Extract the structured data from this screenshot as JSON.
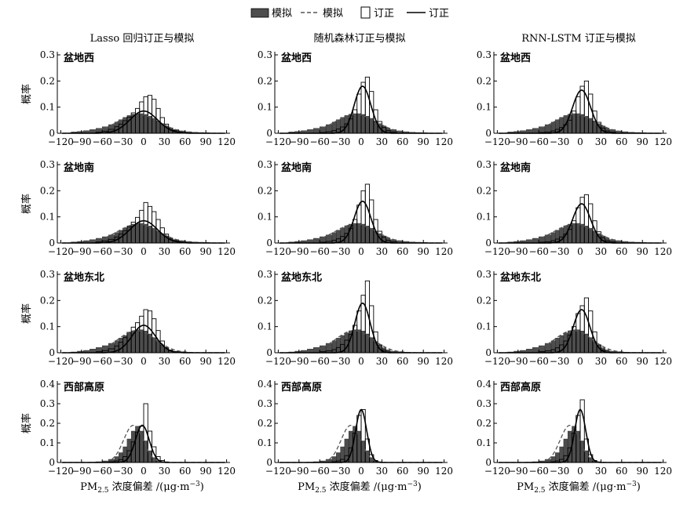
{
  "legend": {
    "sim_bar": "模拟",
    "sim_line": "模拟",
    "cor_bar": "订正",
    "cor_line": "订正"
  },
  "column_titles": [
    "Lasso 回归订正与模拟",
    "随机森林订正与模拟",
    "RNN-LSTM 订正与模拟"
  ],
  "row_titles": [
    "盆地西",
    "盆地南",
    "盆地东北",
    "西部高原"
  ],
  "ylabel": "概率",
  "xlabel": {
    "prefix": "PM",
    "sub": "2.5",
    "mid": " 浓度偏差 /(μg·m",
    "sup": "−3",
    "suffix": ")"
  },
  "colors": {
    "sim_fill": "#4d4d4d",
    "cor_fill": "#ffffff",
    "stroke": "#000000",
    "sim_line": "#555555"
  },
  "chart_data": {
    "type": "histogram-grid",
    "x_ticks": [
      -120,
      -90,
      -60,
      -30,
      0,
      30,
      60,
      90,
      120
    ],
    "xlim": [
      -125,
      125
    ],
    "bin_edges": [
      -105,
      -96,
      -87,
      -78,
      -69,
      -60,
      -51,
      -42,
      -36,
      -30,
      -24,
      -18,
      -12,
      -6,
      0,
      6,
      12,
      18,
      24,
      30,
      36,
      42,
      51,
      60,
      69,
      78,
      87,
      96,
      105
    ],
    "simulated": [
      [
        0.005,
        0.007,
        0.01,
        0.014,
        0.019,
        0.025,
        0.033,
        0.043,
        0.052,
        0.061,
        0.068,
        0.073,
        0.075,
        0.075,
        0.072,
        0.065,
        0.057,
        0.047,
        0.037,
        0.028,
        0.02,
        0.014,
        0.009,
        0.006,
        0.004,
        0.003,
        0.002,
        0.001
      ],
      [
        0.004,
        0.006,
        0.009,
        0.013,
        0.018,
        0.024,
        0.031,
        0.04,
        0.049,
        0.058,
        0.066,
        0.072,
        0.075,
        0.075,
        0.072,
        0.065,
        0.056,
        0.046,
        0.036,
        0.027,
        0.019,
        0.013,
        0.009,
        0.006,
        0.004,
        0.003,
        0.002,
        0.001
      ],
      [
        0.003,
        0.006,
        0.009,
        0.014,
        0.02,
        0.027,
        0.036,
        0.046,
        0.056,
        0.066,
        0.076,
        0.084,
        0.088,
        0.088,
        0.083,
        0.072,
        0.058,
        0.043,
        0.03,
        0.019,
        0.011,
        0.006,
        0.004,
        0.002,
        0.001,
        0.001,
        0.0,
        0.0
      ],
      [
        0.0,
        0.0,
        0.001,
        0.002,
        0.004,
        0.008,
        0.016,
        0.03,
        0.05,
        0.08,
        0.12,
        0.16,
        0.185,
        0.16,
        0.11,
        0.06,
        0.025,
        0.01,
        0.004,
        0.002,
        0.001,
        0.0,
        0.0,
        0.0,
        0.0,
        0.0,
        0.0,
        0.0
      ]
    ],
    "simulated_curve_sd": [
      30,
      30,
      27,
      14
    ],
    "simulated_curve_mean": [
      -8,
      -8,
      -10,
      -15
    ],
    "simulated_curve_scale": [
      0.072,
      0.072,
      0.085,
      0.19
    ],
    "corrected": [
      [
        [
          0.0,
          0.0,
          0.001,
          0.002,
          0.004,
          0.008,
          0.015,
          0.025,
          0.035,
          0.048,
          0.062,
          0.078,
          0.095,
          0.12,
          0.14,
          0.145,
          0.13,
          0.095,
          0.06,
          0.035,
          0.02,
          0.01,
          0.005,
          0.002,
          0.001,
          0.0,
          0.0,
          0.0
        ],
        [
          0.0,
          0.0,
          0.0,
          0.001,
          0.002,
          0.003,
          0.006,
          0.01,
          0.016,
          0.024,
          0.036,
          0.055,
          0.09,
          0.15,
          0.195,
          0.215,
          0.16,
          0.09,
          0.045,
          0.022,
          0.01,
          0.005,
          0.002,
          0.001,
          0.0,
          0.0,
          0.0,
          0.0
        ],
        [
          0.0,
          0.0,
          0.0,
          0.001,
          0.002,
          0.003,
          0.005,
          0.009,
          0.015,
          0.022,
          0.033,
          0.05,
          0.085,
          0.14,
          0.18,
          0.2,
          0.15,
          0.085,
          0.042,
          0.02,
          0.009,
          0.004,
          0.002,
          0.001,
          0.0,
          0.0,
          0.0,
          0.0
        ]
      ],
      [
        [
          0.0,
          0.0,
          0.001,
          0.002,
          0.004,
          0.008,
          0.014,
          0.023,
          0.034,
          0.047,
          0.062,
          0.08,
          0.098,
          0.125,
          0.155,
          0.14,
          0.12,
          0.09,
          0.058,
          0.034,
          0.018,
          0.009,
          0.004,
          0.002,
          0.001,
          0.0,
          0.0,
          0.0
        ],
        [
          0.0,
          0.0,
          0.0,
          0.001,
          0.002,
          0.003,
          0.006,
          0.01,
          0.016,
          0.025,
          0.037,
          0.056,
          0.09,
          0.145,
          0.2,
          0.225,
          0.165,
          0.09,
          0.045,
          0.022,
          0.01,
          0.005,
          0.002,
          0.001,
          0.0,
          0.0,
          0.0,
          0.0
        ],
        [
          0.0,
          0.0,
          0.0,
          0.001,
          0.002,
          0.003,
          0.005,
          0.009,
          0.015,
          0.023,
          0.034,
          0.052,
          0.085,
          0.135,
          0.175,
          0.185,
          0.15,
          0.085,
          0.043,
          0.02,
          0.009,
          0.004,
          0.002,
          0.001,
          0.0,
          0.0,
          0.0,
          0.0
        ]
      ],
      [
        [
          0.0,
          0.0,
          0.001,
          0.002,
          0.004,
          0.008,
          0.015,
          0.026,
          0.04,
          0.058,
          0.078,
          0.098,
          0.115,
          0.14,
          0.165,
          0.16,
          0.13,
          0.085,
          0.045,
          0.02,
          0.008,
          0.003,
          0.001,
          0.0,
          0.0,
          0.0,
          0.0,
          0.0
        ],
        [
          0.0,
          0.0,
          0.0,
          0.001,
          0.002,
          0.004,
          0.007,
          0.012,
          0.02,
          0.032,
          0.048,
          0.07,
          0.105,
          0.16,
          0.22,
          0.275,
          0.18,
          0.08,
          0.03,
          0.01,
          0.003,
          0.001,
          0.0,
          0.0,
          0.0,
          0.0,
          0.0,
          0.0
        ],
        [
          0.0,
          0.0,
          0.0,
          0.001,
          0.002,
          0.004,
          0.007,
          0.012,
          0.019,
          0.03,
          0.045,
          0.068,
          0.1,
          0.15,
          0.18,
          0.21,
          0.16,
          0.08,
          0.03,
          0.01,
          0.003,
          0.001,
          0.0,
          0.0,
          0.0,
          0.0,
          0.0,
          0.0
        ]
      ],
      [
        [
          0.0,
          0.0,
          0.0,
          0.0,
          0.001,
          0.002,
          0.004,
          0.008,
          0.015,
          0.03,
          0.06,
          0.105,
          0.155,
          0.185,
          0.3,
          0.16,
          0.08,
          0.03,
          0.01,
          0.003,
          0.001,
          0.0,
          0.0,
          0.0,
          0.0,
          0.0,
          0.0,
          0.0
        ],
        [
          0.0,
          0.0,
          0.0,
          0.0,
          0.0,
          0.001,
          0.002,
          0.004,
          0.008,
          0.016,
          0.035,
          0.075,
          0.15,
          0.24,
          0.27,
          0.12,
          0.04,
          0.01,
          0.002,
          0.001,
          0.0,
          0.0,
          0.0,
          0.0,
          0.0,
          0.0,
          0.0,
          0.0
        ],
        [
          0.0,
          0.0,
          0.0,
          0.0,
          0.0,
          0.001,
          0.002,
          0.004,
          0.008,
          0.016,
          0.035,
          0.075,
          0.15,
          0.24,
          0.32,
          0.12,
          0.04,
          0.01,
          0.002,
          0.001,
          0.0,
          0.0,
          0.0,
          0.0,
          0.0,
          0.0,
          0.0,
          0.0
        ]
      ]
    ],
    "corrected_curve": [
      [
        {
          "mean": 0,
          "sd": 20,
          "peak": 0.085
        },
        {
          "mean": 2,
          "sd": 12,
          "peak": 0.18
        },
        {
          "mean": 2,
          "sd": 13,
          "peak": 0.165
        }
      ],
      [
        {
          "mean": 0,
          "sd": 20,
          "peak": 0.085
        },
        {
          "mean": 2,
          "sd": 12,
          "peak": 0.16
        },
        {
          "mean": 2,
          "sd": 13,
          "peak": 0.15
        }
      ],
      [
        {
          "mean": 0,
          "sd": 17,
          "peak": 0.105
        },
        {
          "mean": 2,
          "sd": 11,
          "peak": 0.19
        },
        {
          "mean": 2,
          "sd": 12,
          "peak": 0.165
        }
      ],
      [
        {
          "mean": -2,
          "sd": 10,
          "peak": 0.19
        },
        {
          "mean": 0,
          "sd": 8,
          "peak": 0.27
        },
        {
          "mean": 0,
          "sd": 8,
          "peak": 0.27
        }
      ]
    ],
    "ylims": [
      [
        0,
        0.3
      ],
      [
        0,
        0.3
      ],
      [
        0,
        0.3
      ],
      [
        0,
        0.4
      ]
    ],
    "y_ticks": [
      [
        0,
        0.1,
        0.2,
        0.3
      ],
      [
        0,
        0.1,
        0.2,
        0.3
      ],
      [
        0,
        0.1,
        0.2,
        0.3
      ],
      [
        0,
        0.1,
        0.2,
        0.3,
        0.4
      ]
    ],
    "legend_position": "top"
  }
}
